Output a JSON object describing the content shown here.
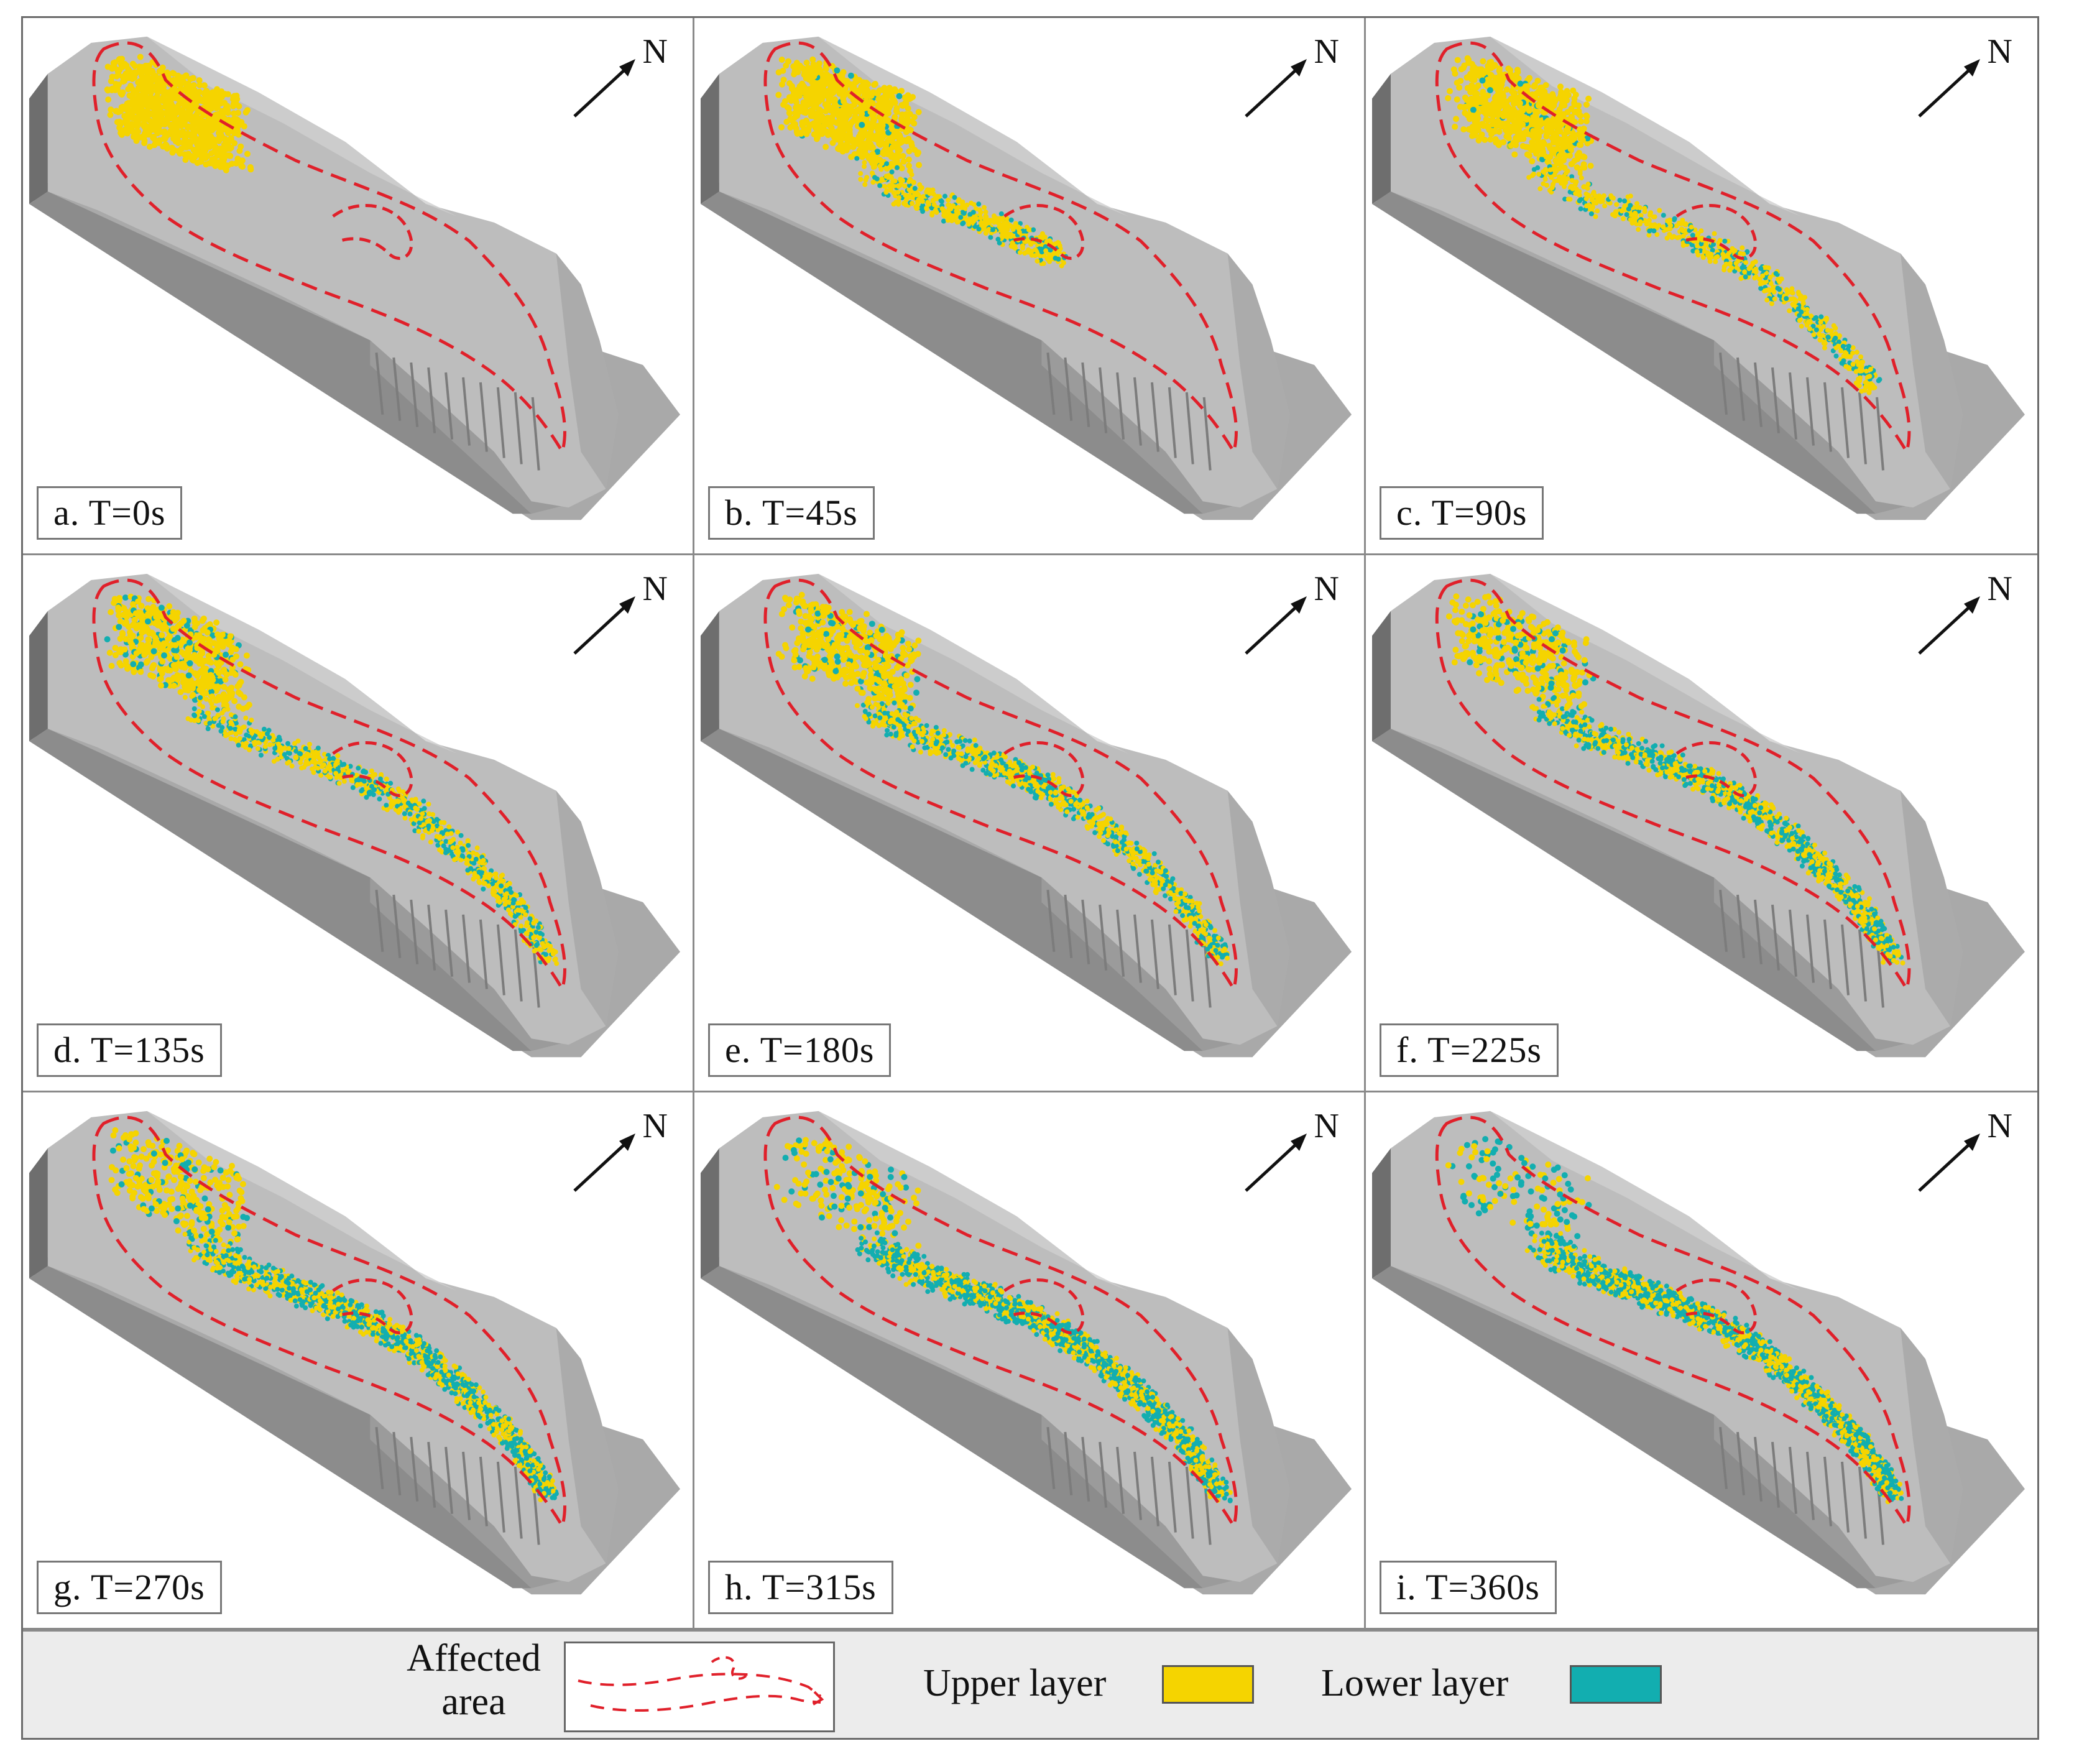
{
  "panels": [
    {
      "label": "a. T=0s",
      "stage": 0
    },
    {
      "label": "b. T=45s",
      "stage": 1
    },
    {
      "label": "c. T=90s",
      "stage": 2
    },
    {
      "label": "d. T=135s",
      "stage": 3
    },
    {
      "label": "e. T=180s",
      "stage": 4
    },
    {
      "label": "f. T=225s",
      "stage": 5
    },
    {
      "label": "g. T=270s",
      "stage": 6
    },
    {
      "label": "h. T=315s",
      "stage": 7
    },
    {
      "label": "i. T=360s",
      "stage": 8
    }
  ],
  "north_label": "N",
  "legend": {
    "affected_area_line1": "Affected",
    "affected_area_line2": "area",
    "upper_layer": "Upper layer",
    "lower_layer": "Lower layer"
  },
  "colors": {
    "upper_layer": "#f5d400",
    "lower_layer": "#12aeb0",
    "affected_outline": "#e0202a",
    "terrain": "#bdbdbd",
    "terrain_side": "#8c8c8c",
    "base": "#a9a9a9"
  }
}
